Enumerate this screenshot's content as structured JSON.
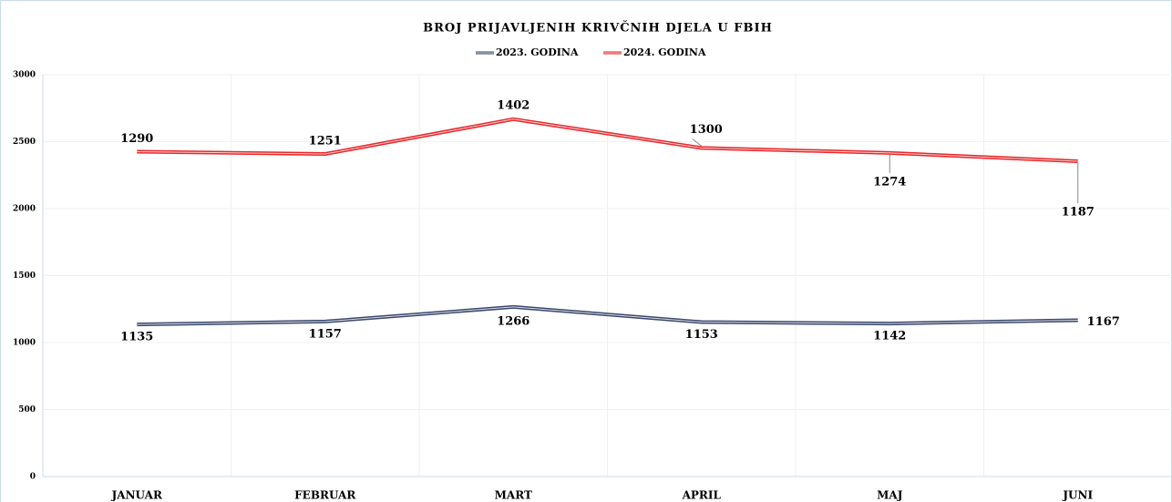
{
  "chart_data": {
    "type": "line",
    "stacked": true,
    "title": "BROJ PRIJAVLJENIH KRIVČNIH DJELA U FBIH",
    "categories": [
      "JANUAR",
      "FEBRUAR",
      "MART",
      "APRIL",
      "MAJ",
      "JUNI"
    ],
    "series": [
      {
        "name": "2023. GODINA",
        "color": "#3c4a6e",
        "values": [
          1135,
          1157,
          1266,
          1153,
          1142,
          1167
        ]
      },
      {
        "name": "2024. GODINA",
        "color": "#e8272a",
        "values": [
          1290,
          1251,
          1402,
          1300,
          1274,
          1187
        ]
      }
    ],
    "ylim": [
      0,
      3000
    ],
    "yticks": [
      0,
      500,
      1000,
      1500,
      2000,
      2500,
      3000
    ],
    "grid": true
  }
}
